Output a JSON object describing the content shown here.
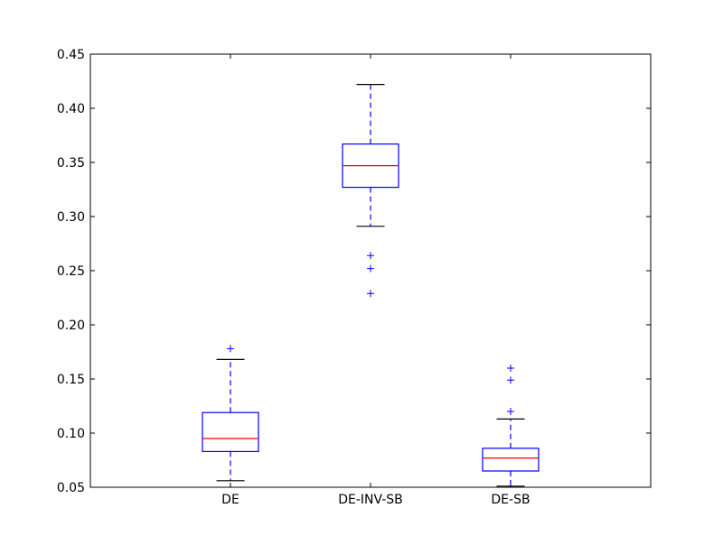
{
  "chart_data": {
    "type": "box",
    "title": "",
    "xlabel": "",
    "ylabel": "",
    "ylim": [
      0.05,
      0.45
    ],
    "yticks": [
      "0.05",
      "0.10",
      "0.15",
      "0.20",
      "0.25",
      "0.30",
      "0.35",
      "0.40",
      "0.45"
    ],
    "grid": false,
    "categories": [
      "DE",
      "DE-INV-SB",
      "DE-SB"
    ],
    "boxes": [
      {
        "category": "DE",
        "whisker_low": 0.056,
        "q1": 0.083,
        "median": 0.095,
        "q3": 0.119,
        "whisker_high": 0.168,
        "outliers": [
          0.178
        ]
      },
      {
        "category": "DE-INV-SB",
        "whisker_low": 0.291,
        "q1": 0.327,
        "median": 0.347,
        "q3": 0.367,
        "whisker_high": 0.422,
        "outliers": [
          0.264,
          0.252,
          0.229
        ]
      },
      {
        "category": "DE-SB",
        "whisker_low": 0.051,
        "q1": 0.065,
        "median": 0.077,
        "q3": 0.086,
        "whisker_high": 0.113,
        "outliers": [
          0.16,
          0.149,
          0.12
        ]
      }
    ],
    "colors": {
      "box": "#0000ff",
      "median": "#ff0000",
      "whisker": "#0000ff",
      "cap": "#000000",
      "flier": "#0000ff"
    }
  }
}
